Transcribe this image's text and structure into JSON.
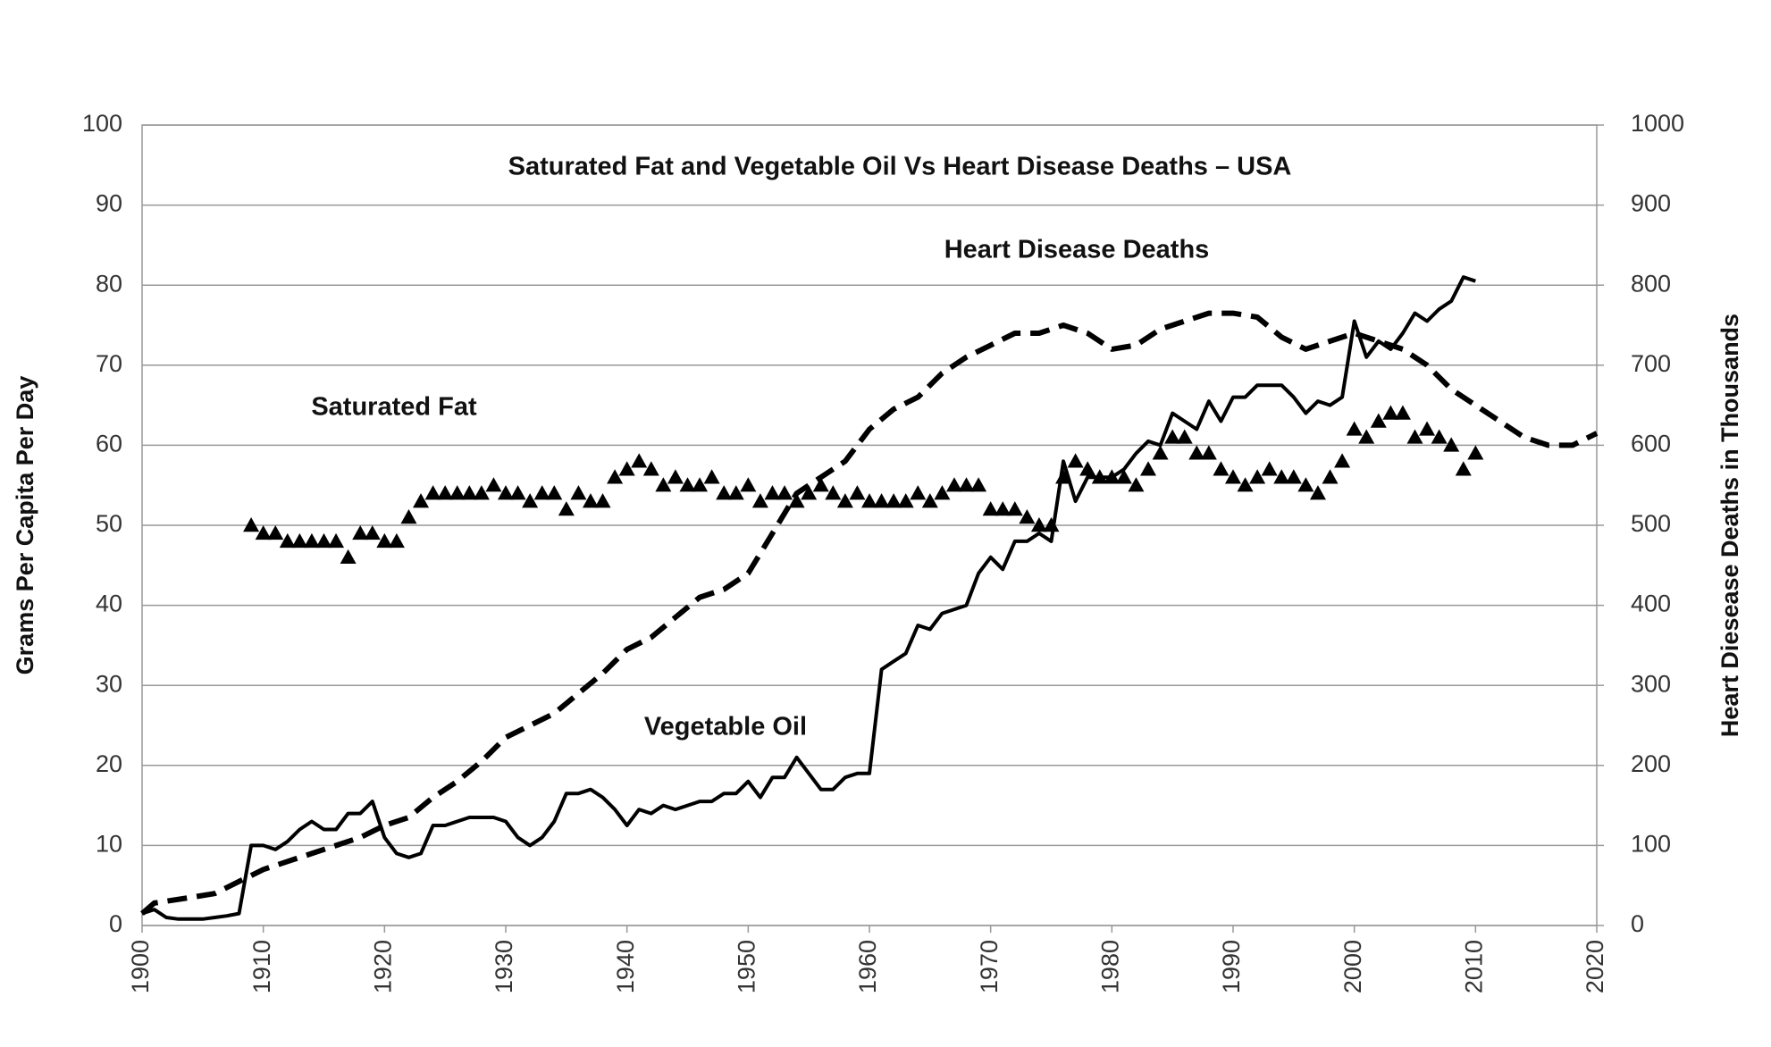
{
  "chart_data": {
    "type": "line",
    "title": "Saturated Fat and Vegetable Oil Vs Heart Disease Deaths – USA",
    "ylabel": "Grams Per Capita Per Day",
    "y2label": "Heart Diesease Deaths in Thousands",
    "annotations": [
      "Heart Disease Deaths",
      "Saturated Fat",
      "Vegetable  Oil"
    ],
    "xlim": [
      1900,
      2020
    ],
    "xticks": [
      1900,
      1910,
      1920,
      1930,
      1940,
      1950,
      1960,
      1970,
      1980,
      1990,
      2000,
      2010,
      2020
    ],
    "ylim": [
      0,
      100
    ],
    "yticks": [
      0,
      10,
      20,
      30,
      40,
      50,
      60,
      70,
      80,
      90,
      100
    ],
    "y2lim": [
      0,
      1000
    ],
    "y2ticks": [
      0,
      100,
      200,
      300,
      400,
      500,
      600,
      700,
      800,
      900,
      1000
    ],
    "grid": true,
    "series": [
      {
        "name": "Saturated Fat",
        "color": "#000000",
        "style": "triangle-markers",
        "x": [
          1909,
          1910,
          1911,
          1912,
          1913,
          1914,
          1915,
          1916,
          1917,
          1918,
          1919,
          1920,
          1921,
          1922,
          1923,
          1924,
          1925,
          1926,
          1927,
          1928,
          1929,
          1930,
          1931,
          1932,
          1933,
          1934,
          1935,
          1936,
          1937,
          1938,
          1939,
          1940,
          1941,
          1942,
          1943,
          1944,
          1945,
          1946,
          1947,
          1948,
          1949,
          1950,
          1951,
          1952,
          1953,
          1954,
          1955,
          1956,
          1957,
          1958,
          1959,
          1960,
          1961,
          1962,
          1963,
          1964,
          1965,
          1966,
          1967,
          1968,
          1969,
          1970,
          1971,
          1972,
          1973,
          1974,
          1975,
          1976,
          1977,
          1978,
          1979,
          1980,
          1981,
          1982,
          1983,
          1984,
          1985,
          1986,
          1987,
          1988,
          1989,
          1990,
          1991,
          1992,
          1993,
          1994,
          1995,
          1996,
          1997,
          1998,
          1999,
          2000,
          2001,
          2002,
          2003,
          2004,
          2005,
          2006,
          2007,
          2008,
          2009,
          2010
        ],
        "values": [
          50,
          49,
          49,
          48,
          48,
          48,
          48,
          48,
          46,
          49,
          49,
          48,
          48,
          51,
          53,
          54,
          54,
          54,
          54,
          54,
          55,
          54,
          54,
          53,
          54,
          54,
          52,
          54,
          53,
          53,
          56,
          57,
          58,
          57,
          55,
          56,
          55,
          55,
          56,
          54,
          54,
          55,
          53,
          54,
          54,
          53,
          54,
          55,
          54,
          53,
          54,
          53,
          53,
          53,
          53,
          54,
          53,
          54,
          55,
          55,
          55,
          52,
          52,
          52,
          51,
          50,
          50,
          56,
          58,
          57,
          56,
          56,
          56,
          55,
          57,
          59,
          61,
          61,
          59,
          59,
          57,
          56,
          55,
          56,
          57,
          56,
          56,
          55,
          54,
          56,
          58,
          62,
          61,
          63,
          64,
          64,
          61,
          62,
          61,
          60,
          57,
          59
        ]
      },
      {
        "name": "Vegetable Oil",
        "color": "#000000",
        "style": "solid",
        "x": [
          1900,
          1901,
          1902,
          1903,
          1904,
          1905,
          1906,
          1907,
          1908,
          1909,
          1910,
          1911,
          1912,
          1913,
          1914,
          1915,
          1916,
          1917,
          1918,
          1919,
          1920,
          1921,
          1922,
          1923,
          1924,
          1925,
          1926,
          1927,
          1928,
          1929,
          1930,
          1931,
          1932,
          1933,
          1934,
          1935,
          1936,
          1937,
          1938,
          1939,
          1940,
          1941,
          1942,
          1943,
          1944,
          1945,
          1946,
          1947,
          1948,
          1949,
          1950,
          1951,
          1952,
          1953,
          1954,
          1955,
          1956,
          1957,
          1958,
          1959,
          1960,
          1961,
          1962,
          1963,
          1964,
          1965,
          1966,
          1967,
          1968,
          1969,
          1970,
          1971,
          1972,
          1973,
          1974,
          1975,
          1976,
          1977,
          1978,
          1979,
          1980,
          1981,
          1982,
          1983,
          1984,
          1985,
          1986,
          1987,
          1988,
          1989,
          1990,
          1991,
          1992,
          1993,
          1994,
          1995,
          1996,
          1997,
          1998,
          1999,
          2000,
          2001,
          2002,
          2003,
          2004,
          2005,
          2006,
          2007,
          2008,
          2009,
          2010
        ],
        "values": [
          1.5,
          2,
          1,
          0.8,
          0.8,
          0.8,
          1,
          1.2,
          1.5,
          10,
          10,
          9.5,
          10.5,
          12,
          13,
          12,
          12,
          14,
          14,
          15.5,
          11,
          9,
          8.5,
          9,
          12.5,
          12.5,
          13,
          13.5,
          13.5,
          13.5,
          13,
          11,
          10,
          11,
          13,
          16.5,
          16.5,
          17,
          16,
          14.5,
          12.5,
          14.5,
          14,
          15,
          14.5,
          15,
          15.5,
          15.5,
          16.5,
          16.5,
          18,
          16,
          18.5,
          18.5,
          21,
          19,
          17,
          17,
          18.5,
          19,
          19,
          32,
          33,
          34,
          37.5,
          37,
          39,
          39.5,
          40,
          44,
          46,
          44.5,
          48,
          48,
          49,
          48,
          58,
          53,
          56,
          56,
          56,
          57,
          59,
          60.5,
          60,
          64,
          63,
          62,
          65.5,
          63,
          66,
          66,
          67.5,
          67.5,
          67.5,
          66,
          64,
          65.5,
          65,
          66,
          75.5,
          71,
          73,
          72,
          74,
          76.5,
          75.5,
          77,
          78,
          81,
          80.5
        ]
      },
      {
        "name": "Heart Disease Deaths",
        "color": "#000000",
        "style": "dashed",
        "axis": "y2",
        "x": [
          1900,
          1901,
          1904,
          1906,
          1908,
          1910,
          1912,
          1914,
          1916,
          1918,
          1920,
          1922,
          1924,
          1926,
          1928,
          1930,
          1932,
          1934,
          1936,
          1938,
          1940,
          1942,
          1944,
          1946,
          1948,
          1950,
          1952,
          1954,
          1956,
          1958,
          1960,
          1962,
          1964,
          1966,
          1968,
          1970,
          1972,
          1974,
          1976,
          1978,
          1980,
          1982,
          1984,
          1986,
          1988,
          1990,
          1992,
          1994,
          1996,
          1998,
          2000,
          2002,
          2004,
          2006,
          2008,
          2010,
          2012,
          2014,
          2016,
          2018,
          2020
        ],
        "values": [
          15,
          28,
          35,
          40,
          55,
          70,
          80,
          90,
          100,
          110,
          125,
          135,
          160,
          180,
          205,
          235,
          250,
          265,
          290,
          315,
          345,
          360,
          385,
          410,
          420,
          440,
          490,
          540,
          560,
          580,
          620,
          645,
          660,
          690,
          710,
          725,
          740,
          740,
          750,
          740,
          720,
          725,
          745,
          755,
          765,
          765,
          760,
          735,
          720,
          730,
          740,
          730,
          720,
          700,
          670,
          650,
          630,
          610,
          600,
          600,
          615
        ]
      }
    ]
  }
}
